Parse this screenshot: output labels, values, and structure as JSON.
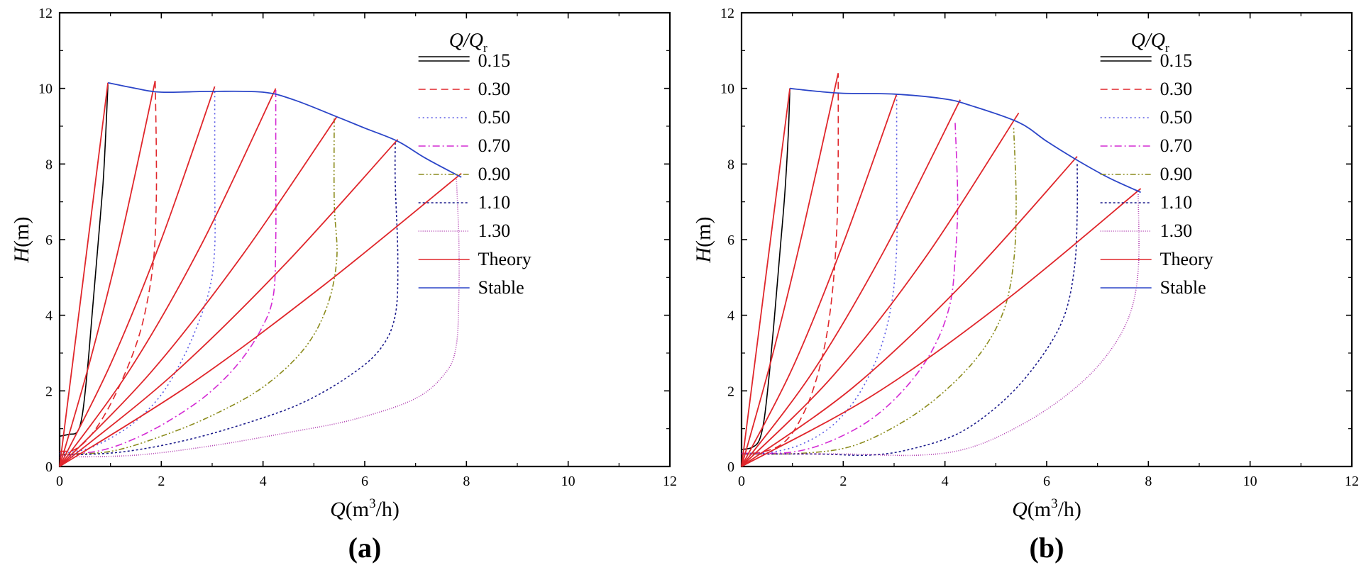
{
  "figure": {
    "panel_labels": [
      "(a)",
      "(b)"
    ]
  },
  "colors": {
    "axis": "#000000",
    "theory": "#e0262b",
    "stable": "#2b45c8",
    "r015": "#000000",
    "r030": "#e0262b",
    "r050": "#5a5ae6",
    "r070": "#d42ad4",
    "r090": "#8c8c1e",
    "r110": "#1c1c8c",
    "r130": "#b03cb0"
  },
  "chart_data": [
    {
      "type": "line",
      "panel": "(a)",
      "xlim": [
        0,
        12
      ],
      "ylim": [
        0,
        12
      ],
      "x_ticks": [
        0,
        2,
        4,
        6,
        8,
        10,
        12
      ],
      "y_ticks": [
        0,
        2,
        4,
        6,
        8,
        10,
        12
      ],
      "grid": false,
      "legend_placement": "top-right",
      "legend_title_num": "Q",
      "legend_title_den": "Q",
      "legend_title_sub": "r",
      "xlabel_var": "Q",
      "xlabel_unit_pre": "(m",
      "xlabel_unit_sup": "3",
      "xlabel_unit_post": "/h)",
      "ylabel_var": "H",
      "ylabel_unit": "(m)",
      "series": [
        {
          "name": "0.15",
          "style": "r015",
          "dash": "",
          "points": [
            [
              0,
              0.8
            ],
            [
              0.18,
              0.85
            ],
            [
              0.35,
              0.92
            ],
            [
              0.45,
              1.4
            ],
            [
              0.55,
              2.6
            ],
            [
              0.65,
              4.2
            ],
            [
              0.75,
              5.8
            ],
            [
              0.85,
              7.4
            ],
            [
              0.9,
              8.6
            ],
            [
              0.95,
              10.1
            ]
          ]
        },
        {
          "name": "0.30",
          "style": "r030",
          "dash": "10 6",
          "points": [
            [
              0,
              0.4
            ],
            [
              0.3,
              0.45
            ],
            [
              0.6,
              0.8
            ],
            [
              0.9,
              1.4
            ],
            [
              1.2,
              2.2
            ],
            [
              1.5,
              3.2
            ],
            [
              1.7,
              4.2
            ],
            [
              1.85,
              5.5
            ],
            [
              1.9,
              7.0
            ],
            [
              1.9,
              8.5
            ],
            [
              1.88,
              10.2
            ]
          ]
        },
        {
          "name": "0.50",
          "style": "r050",
          "dash": "2 4",
          "points": [
            [
              0,
              0.35
            ],
            [
              0.5,
              0.45
            ],
            [
              1.0,
              0.75
            ],
            [
              1.5,
              1.2
            ],
            [
              2.0,
              1.9
            ],
            [
              2.4,
              2.8
            ],
            [
              2.7,
              3.7
            ],
            [
              2.95,
              4.7
            ],
            [
              3.05,
              5.8
            ],
            [
              3.05,
              7.5
            ],
            [
              3.05,
              10.0
            ]
          ]
        },
        {
          "name": "0.70",
          "style": "r070",
          "dash": "10 4 2 4",
          "points": [
            [
              0,
              0.3
            ],
            [
              0.8,
              0.42
            ],
            [
              1.5,
              0.75
            ],
            [
              2.2,
              1.25
            ],
            [
              2.9,
              1.9
            ],
            [
              3.5,
              2.7
            ],
            [
              3.95,
              3.6
            ],
            [
              4.2,
              4.5
            ],
            [
              4.25,
              6.0
            ],
            [
              4.25,
              8.0
            ],
            [
              4.25,
              10.0
            ]
          ]
        },
        {
          "name": "0.90",
          "style": "r090",
          "dash": "8 3 2 3 2 3",
          "points": [
            [
              0,
              0.32
            ],
            [
              1.0,
              0.4
            ],
            [
              2.0,
              0.8
            ],
            [
              3.0,
              1.35
            ],
            [
              4.0,
              2.1
            ],
            [
              4.8,
              3.1
            ],
            [
              5.25,
              4.2
            ],
            [
              5.45,
              5.5
            ],
            [
              5.4,
              7.0
            ],
            [
              5.4,
              9.2
            ]
          ]
        },
        {
          "name": "1.10",
          "style": "r110",
          "dash": "3 3",
          "points": [
            [
              0,
              0.3
            ],
            [
              1.2,
              0.38
            ],
            [
              2.5,
              0.7
            ],
            [
              3.8,
              1.2
            ],
            [
              4.8,
              1.7
            ],
            [
              5.7,
              2.4
            ],
            [
              6.3,
              3.1
            ],
            [
              6.6,
              4.0
            ],
            [
              6.65,
              5.5
            ],
            [
              6.6,
              7.5
            ],
            [
              6.6,
              8.6
            ]
          ]
        },
        {
          "name": "1.30",
          "style": "r130",
          "dash": "1 2",
          "points": [
            [
              0,
              0.25
            ],
            [
              1.5,
              0.3
            ],
            [
              3.0,
              0.55
            ],
            [
              4.5,
              0.9
            ],
            [
              5.8,
              1.25
            ],
            [
              7.0,
              1.8
            ],
            [
              7.6,
              2.5
            ],
            [
              7.8,
              3.2
            ],
            [
              7.85,
              4.5
            ],
            [
              7.85,
              6.0
            ],
            [
              7.8,
              7.7
            ]
          ]
        }
      ],
      "theory": {
        "name": "Theory",
        "curves": [
          [
            [
              0,
              0
            ],
            [
              0.95,
              10.15
            ]
          ],
          [
            [
              0,
              0
            ],
            [
              0.6,
              2.8
            ],
            [
              1.2,
              6.0
            ],
            [
              1.88,
              10.2
            ]
          ],
          [
            [
              0,
              0
            ],
            [
              1.0,
              2.7
            ],
            [
              2.0,
              6.0
            ],
            [
              3.05,
              10.05
            ]
          ],
          [
            [
              0,
              0
            ],
            [
              1.4,
              2.6
            ],
            [
              2.8,
              5.9
            ],
            [
              4.25,
              10.0
            ]
          ],
          [
            [
              0,
              0
            ],
            [
              1.8,
              2.5
            ],
            [
              3.6,
              5.6
            ],
            [
              5.45,
              9.25
            ]
          ],
          [
            [
              0,
              0
            ],
            [
              2.2,
              2.4
            ],
            [
              4.4,
              5.3
            ],
            [
              6.65,
              8.65
            ]
          ],
          [
            [
              0,
              0
            ],
            [
              2.6,
              2.2
            ],
            [
              5.2,
              4.8
            ],
            [
              7.9,
              7.75
            ]
          ]
        ]
      },
      "stable": {
        "name": "Stable",
        "points": [
          [
            0.95,
            10.15
          ],
          [
            1.5,
            10.0
          ],
          [
            2.0,
            9.9
          ],
          [
            3.0,
            9.92
          ],
          [
            4.0,
            9.9
          ],
          [
            4.6,
            9.7
          ],
          [
            5.45,
            9.25
          ],
          [
            6.0,
            8.95
          ],
          [
            6.65,
            8.6
          ],
          [
            7.2,
            8.15
          ],
          [
            7.9,
            7.65
          ]
        ]
      }
    },
    {
      "type": "line",
      "panel": "(b)",
      "xlim": [
        0,
        12
      ],
      "ylim": [
        0,
        12
      ],
      "x_ticks": [
        0,
        2,
        4,
        6,
        8,
        10,
        12
      ],
      "y_ticks": [
        0,
        2,
        4,
        6,
        8,
        10,
        12
      ],
      "grid": false,
      "legend_placement": "top-right",
      "legend_title_num": "Q",
      "legend_title_den": "Q",
      "legend_title_sub": "r",
      "xlabel_var": "Q",
      "xlabel_unit_pre": "(m",
      "xlabel_unit_sup": "3",
      "xlabel_unit_post": "/h)",
      "ylabel_var": "H",
      "ylabel_unit": "(m)",
      "series": [
        {
          "name": "0.15",
          "style": "r015",
          "dash": "",
          "points": [
            [
              0,
              0.45
            ],
            [
              0.2,
              0.5
            ],
            [
              0.35,
              0.7
            ],
            [
              0.45,
              1.3
            ],
            [
              0.55,
              2.5
            ],
            [
              0.65,
              4.0
            ],
            [
              0.75,
              5.6
            ],
            [
              0.85,
              7.2
            ],
            [
              0.92,
              8.8
            ],
            [
              0.95,
              10.0
            ]
          ]
        },
        {
          "name": "0.30",
          "style": "r030",
          "dash": "10 6",
          "points": [
            [
              0,
              0.35
            ],
            [
              0.4,
              0.38
            ],
            [
              0.8,
              0.6
            ],
            [
              1.1,
              1.1
            ],
            [
              1.4,
              2.0
            ],
            [
              1.65,
              3.3
            ],
            [
              1.8,
              4.8
            ],
            [
              1.88,
              6.5
            ],
            [
              1.9,
              8.2
            ],
            [
              1.9,
              10.4
            ]
          ]
        },
        {
          "name": "0.50",
          "style": "r050",
          "dash": "2 4",
          "points": [
            [
              0,
              0.35
            ],
            [
              0.6,
              0.38
            ],
            [
              1.2,
              0.6
            ],
            [
              1.8,
              1.1
            ],
            [
              2.3,
              1.9
            ],
            [
              2.7,
              3.0
            ],
            [
              2.95,
              4.3
            ],
            [
              3.05,
              5.8
            ],
            [
              3.05,
              7.5
            ],
            [
              3.05,
              9.8
            ]
          ]
        },
        {
          "name": "0.70",
          "style": "r070",
          "dash": "10 4 2 4",
          "points": [
            [
              0,
              0.35
            ],
            [
              1.0,
              0.38
            ],
            [
              1.8,
              0.7
            ],
            [
              2.6,
              1.3
            ],
            [
              3.3,
              2.2
            ],
            [
              3.8,
              3.2
            ],
            [
              4.1,
              4.3
            ],
            [
              4.2,
              5.5
            ],
            [
              4.25,
              7.0
            ],
            [
              4.2,
              9.1
            ]
          ]
        },
        {
          "name": "0.90",
          "style": "r090",
          "dash": "8 3 2 3 2 3",
          "points": [
            [
              0,
              0.33
            ],
            [
              1.2,
              0.35
            ],
            [
              2.2,
              0.55
            ],
            [
              3.2,
              1.2
            ],
            [
              4.0,
              2.0
            ],
            [
              4.7,
              3.0
            ],
            [
              5.15,
              4.1
            ],
            [
              5.35,
              5.4
            ],
            [
              5.4,
              7.0
            ],
            [
              5.35,
              9.0
            ]
          ]
        },
        {
          "name": "1.10",
          "style": "r110",
          "dash": "3 3",
          "points": [
            [
              0,
              0.33
            ],
            [
              1.5,
              0.33
            ],
            [
              2.5,
              0.3
            ],
            [
              3.3,
              0.45
            ],
            [
              4.3,
              0.9
            ],
            [
              5.2,
              1.8
            ],
            [
              5.9,
              2.9
            ],
            [
              6.35,
              4.0
            ],
            [
              6.55,
              5.3
            ],
            [
              6.6,
              6.7
            ],
            [
              6.6,
              8.0
            ]
          ]
        },
        {
          "name": "1.30",
          "style": "r130",
          "dash": "1 2",
          "points": [
            [
              0,
              0.33
            ],
            [
              2.0,
              0.33
            ],
            [
              3.5,
              0.3
            ],
            [
              4.5,
              0.5
            ],
            [
              5.5,
              1.1
            ],
            [
              6.4,
              1.9
            ],
            [
              7.1,
              2.8
            ],
            [
              7.6,
              3.9
            ],
            [
              7.8,
              5.2
            ],
            [
              7.8,
              7.2
            ]
          ]
        }
      ],
      "theory": {
        "name": "Theory",
        "curves": [
          [
            [
              0,
              0
            ],
            [
              0.95,
              10.0
            ]
          ],
          [
            [
              0,
              0
            ],
            [
              0.6,
              2.9
            ],
            [
              1.2,
              6.2
            ],
            [
              1.9,
              10.4
            ]
          ],
          [
            [
              0,
              0
            ],
            [
              1.0,
              2.6
            ],
            [
              2.0,
              5.9
            ],
            [
              3.05,
              9.85
            ]
          ],
          [
            [
              0,
              0
            ],
            [
              1.4,
              2.5
            ],
            [
              2.8,
              5.7
            ],
            [
              4.3,
              9.7
            ]
          ],
          [
            [
              0,
              0
            ],
            [
              1.8,
              2.4
            ],
            [
              3.6,
              5.5
            ],
            [
              5.45,
              9.35
            ]
          ],
          [
            [
              0,
              0
            ],
            [
              2.2,
              2.1
            ],
            [
              4.4,
              4.9
            ],
            [
              6.6,
              8.2
            ]
          ],
          [
            [
              0,
              0
            ],
            [
              2.6,
              1.9
            ],
            [
              5.2,
              4.4
            ],
            [
              7.85,
              7.35
            ]
          ]
        ]
      },
      "stable": {
        "name": "Stable",
        "points": [
          [
            0.95,
            10.0
          ],
          [
            1.5,
            9.92
          ],
          [
            2.0,
            9.87
          ],
          [
            3.0,
            9.85
          ],
          [
            4.0,
            9.72
          ],
          [
            4.5,
            9.55
          ],
          [
            5.45,
            9.1
          ],
          [
            6.0,
            8.6
          ],
          [
            6.6,
            8.1
          ],
          [
            7.2,
            7.65
          ],
          [
            7.85,
            7.25
          ]
        ]
      }
    }
  ]
}
